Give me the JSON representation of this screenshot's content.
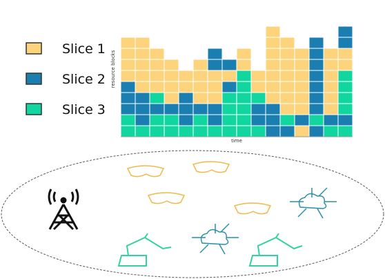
{
  "legend": [
    {
      "label": "Slice 1",
      "color": "#fdd47c"
    },
    {
      "label": "Slice 2",
      "color": "#1a7fb0"
    },
    {
      "label": "Slice 3",
      "color": "#12d6a0"
    }
  ],
  "grid": {
    "y_label": "resource blocks",
    "x_label": "time",
    "columns": [
      [
        3,
        3,
        2,
        2,
        2,
        1,
        1,
        1,
        1
      ],
      [
        3,
        2,
        2,
        2,
        1,
        1,
        1,
        1,
        1
      ],
      [
        3,
        3,
        2,
        3,
        1,
        1,
        1,
        1
      ],
      [
        3,
        3,
        2,
        1,
        1,
        1,
        1
      ],
      [
        3,
        2,
        2,
        2,
        1,
        1
      ],
      [
        3,
        3,
        2,
        1,
        1,
        1,
        1
      ],
      [
        3,
        2,
        2,
        1,
        1,
        1,
        2,
        2
      ],
      [
        3,
        3,
        3,
        3,
        2,
        1,
        2
      ],
      [
        3,
        3,
        3,
        3,
        3,
        3,
        1,
        1
      ],
      [
        3,
        2,
        2,
        3,
        1,
        1
      ],
      [
        2,
        2,
        2,
        1,
        1,
        1,
        1,
        1,
        1,
        1
      ],
      [
        2,
        3,
        1,
        1,
        1,
        1,
        1,
        1,
        1
      ],
      [
        1,
        2,
        1,
        1,
        1,
        1,
        1,
        1
      ],
      [
        2,
        3,
        2,
        2,
        2,
        2,
        2,
        2,
        2
      ],
      [
        3,
        2,
        1,
        1,
        1,
        1,
        1,
        1
      ],
      [
        3,
        2,
        3,
        3,
        3,
        3,
        1,
        1,
        2,
        2
      ]
    ]
  }
}
